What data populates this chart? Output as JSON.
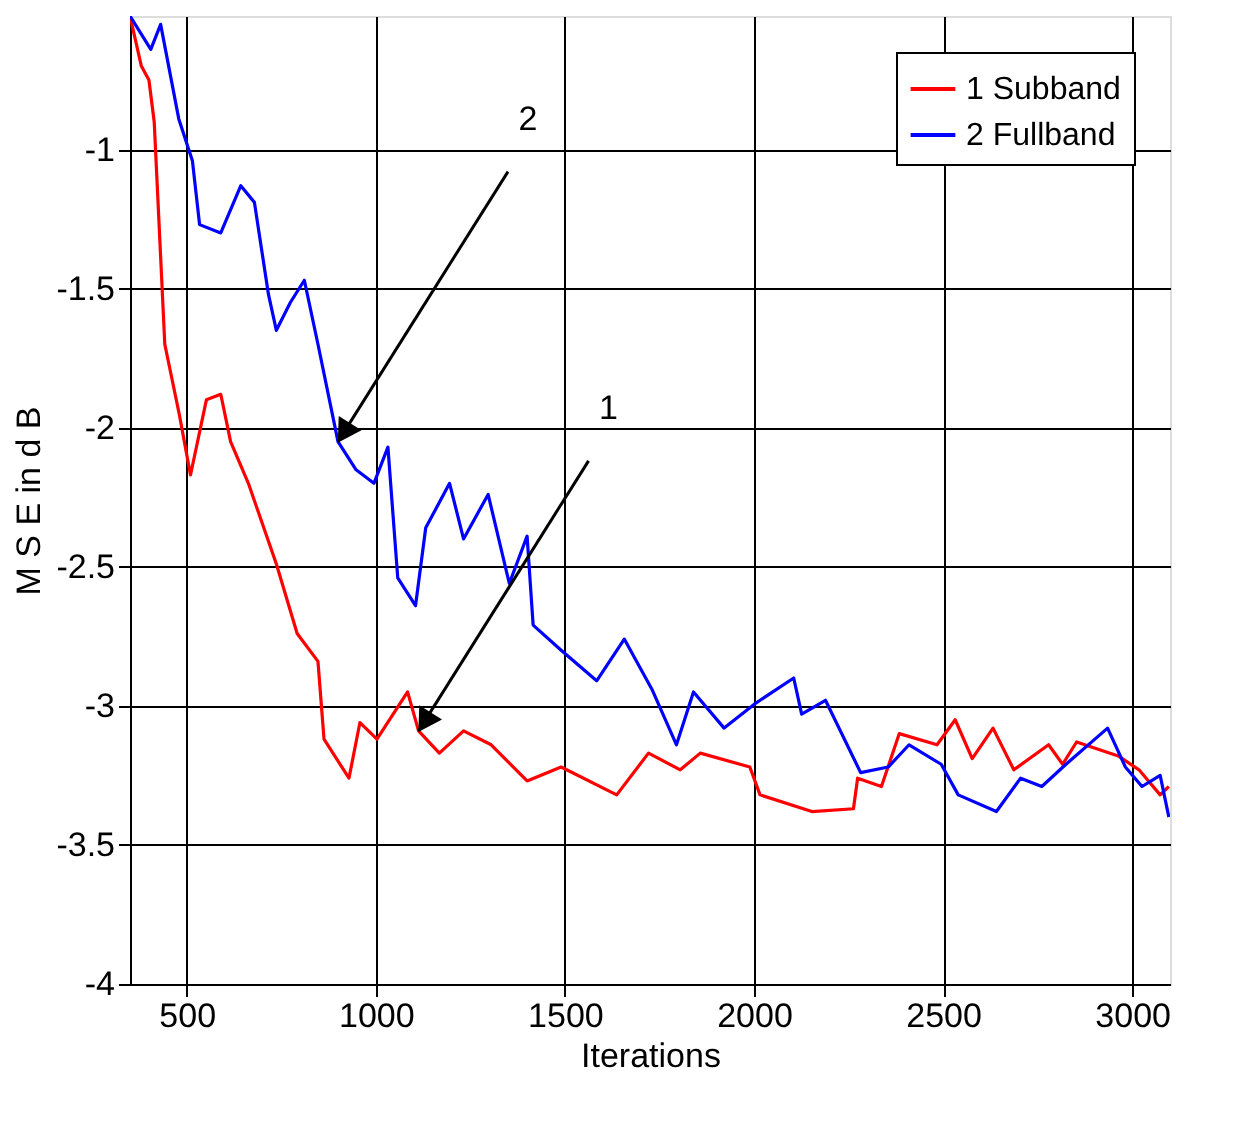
{
  "chart_data": {
    "type": "line",
    "xlabel": "Iterations",
    "ylabel": "M S E in d B",
    "xlim": [
      350,
      3100
    ],
    "ylim": [
      -4,
      -0.52
    ],
    "xticks": [
      500,
      1000,
      1500,
      2000,
      2500,
      3000
    ],
    "yticks": [
      -4,
      -3.5,
      -3,
      -2.5,
      -2,
      -1.5,
      -1
    ],
    "grid": true,
    "legend": "top right",
    "line_style": "solid",
    "marker": "none",
    "annotations": [
      {
        "text": "2",
        "x": 900,
        "y": -2.05
      },
      {
        "text": "1",
        "x": 1113,
        "y": -3.09
      }
    ],
    "series": [
      {
        "name": "1 Subband",
        "color": "#ff0000",
        "x": [
          350,
          380,
          400,
          414,
          442,
          480,
          510,
          552,
          590,
          616,
          663,
          737,
          792,
          847,
          863,
          929,
          958,
          1003,
          1084,
          1113,
          1168,
          1232,
          1305,
          1400,
          1490,
          1637,
          1721,
          1805,
          1858,
          1989,
          2016,
          2153,
          2263,
          2274,
          2337,
          2384,
          2484,
          2532,
          2577,
          2632,
          2687,
          2779,
          2816,
          2853,
          2963,
          3018,
          3074,
          3097
        ],
        "values": [
          -0.52,
          -0.7,
          -0.75,
          -0.9,
          -1.7,
          -1.95,
          -2.17,
          -1.9,
          -1.88,
          -2.05,
          -2.2,
          -2.49,
          -2.74,
          -2.84,
          -3.12,
          -3.26,
          -3.06,
          -3.12,
          -2.95,
          -3.09,
          -3.17,
          -3.09,
          -3.14,
          -3.27,
          -3.22,
          -3.32,
          -3.17,
          -3.23,
          -3.17,
          -3.22,
          -3.32,
          -3.38,
          -3.37,
          -3.26,
          -3.29,
          -3.1,
          -3.14,
          -3.05,
          -3.19,
          -3.08,
          -3.23,
          -3.14,
          -3.21,
          -3.13,
          -3.18,
          -3.23,
          -3.32,
          -3.29
        ]
      },
      {
        "name": "2 Fullband",
        "color": "#0000ff",
        "x": [
          350,
          405,
          431,
          479,
          515,
          534,
          590,
          643,
          679,
          716,
          737,
          774,
          811,
          847,
          900,
          947,
          995,
          1032,
          1058,
          1105,
          1132,
          1195,
          1232,
          1297,
          1353,
          1400,
          1416,
          1490,
          1584,
          1657,
          1730,
          1795,
          1840,
          1921,
          2005,
          2105,
          2126,
          2189,
          2282,
          2355,
          2410,
          2495,
          2540,
          2641,
          2705,
          2761,
          2825,
          2935,
          2982,
          3026,
          3074,
          3097
        ],
        "values": [
          -0.52,
          -0.64,
          -0.55,
          -0.89,
          -1.04,
          -1.27,
          -1.3,
          -1.13,
          -1.19,
          -1.52,
          -1.65,
          -1.55,
          -1.47,
          -1.7,
          -2.05,
          -2.15,
          -2.2,
          -2.07,
          -2.54,
          -2.64,
          -2.36,
          -2.2,
          -2.4,
          -2.24,
          -2.56,
          -2.39,
          -2.71,
          -2.8,
          -2.91,
          -2.76,
          -2.94,
          -3.14,
          -2.95,
          -3.08,
          -2.99,
          -2.9,
          -3.03,
          -2.98,
          -3.24,
          -3.22,
          -3.14,
          -3.21,
          -3.32,
          -3.38,
          -3.26,
          -3.29,
          -3.21,
          -3.08,
          -3.22,
          -3.29,
          -3.25,
          -3.4
        ]
      }
    ]
  }
}
